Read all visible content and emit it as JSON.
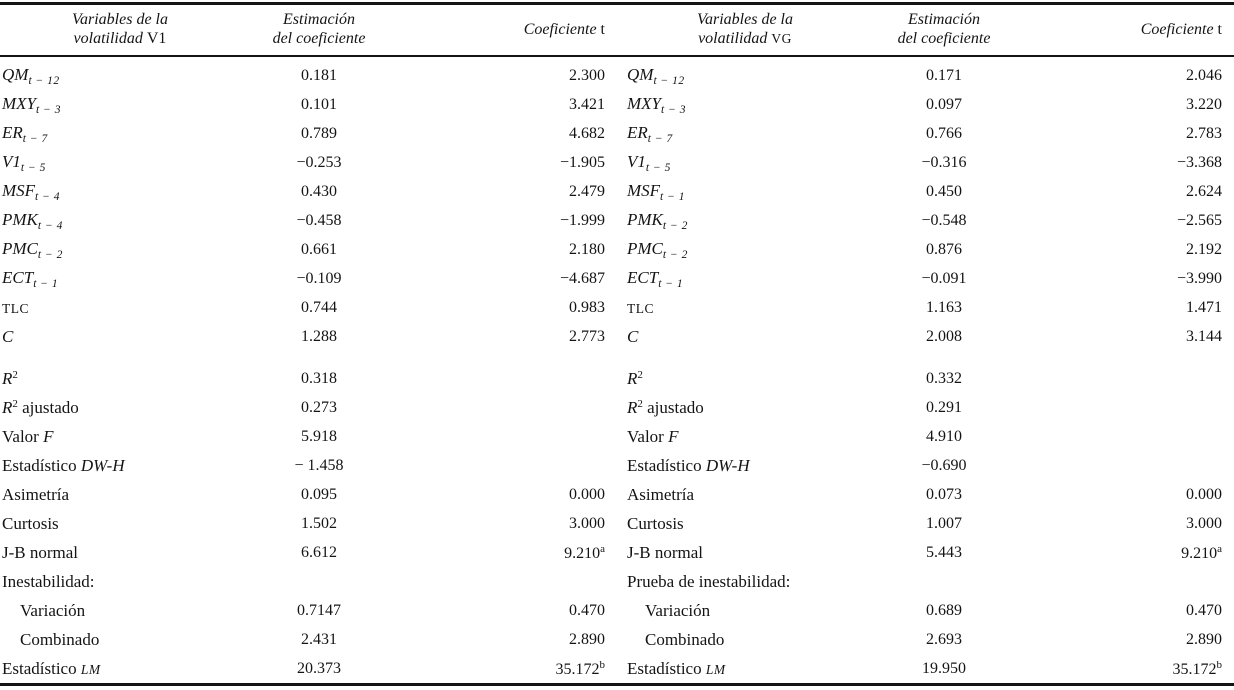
{
  "meta": {
    "background": "#ffffff",
    "text_color": "#141414",
    "rule_color": "#141414"
  },
  "panels": [
    {
      "id": "v1",
      "header": {
        "variables_line1": [
          {
            "t": "Variables de la",
            "s": "i"
          }
        ],
        "variables_line2": [
          {
            "t": "volatilidad ",
            "s": "i"
          },
          {
            "t": "V1",
            "s": "r"
          }
        ],
        "estimate_line1": "Estimación",
        "estimate_line2": "del coeficiente",
        "tstat": [
          {
            "t": "Coeficiente ",
            "s": "i"
          },
          {
            "t": "t",
            "s": "r"
          }
        ]
      },
      "rows": [
        {
          "label": [
            {
              "t": "QM",
              "s": "i"
            },
            {
              "t": "t − 12",
              "s": "sub"
            }
          ],
          "est": "0.181",
          "t": "2.300"
        },
        {
          "label": [
            {
              "t": "MXY",
              "s": "i"
            },
            {
              "t": "t − 3",
              "s": "sub"
            }
          ],
          "est": "0.101",
          "t": "3.421"
        },
        {
          "label": [
            {
              "t": "ER",
              "s": "i"
            },
            {
              "t": "t − 7",
              "s": "sub"
            }
          ],
          "est": "0.789",
          "t": "4.682"
        },
        {
          "label": [
            {
              "t": "V1",
              "s": "i"
            },
            {
              "t": "t − 5",
              "s": "sub"
            }
          ],
          "est": "−0.253",
          "t": "−1.905"
        },
        {
          "label": [
            {
              "t": "MSF",
              "s": "i"
            },
            {
              "t": "t − 4",
              "s": "sub"
            }
          ],
          "est": "0.430",
          "t": "2.479"
        },
        {
          "label": [
            {
              "t": "PMK",
              "s": "i"
            },
            {
              "t": "t − 4",
              "s": "sub"
            }
          ],
          "est": "−0.458",
          "t": "−1.999"
        },
        {
          "label": [
            {
              "t": "PMC",
              "s": "i"
            },
            {
              "t": "t − 2",
              "s": "sub"
            }
          ],
          "est": "0.661",
          "t": "2.180"
        },
        {
          "label": [
            {
              "t": "ECT",
              "s": "i"
            },
            {
              "t": "t − 1",
              "s": "sub"
            }
          ],
          "est": "−0.109",
          "t": "−4.687"
        },
        {
          "label": [
            {
              "t": "TLC",
              "s": "sc"
            }
          ],
          "est": "0.744",
          "t": "0.983"
        },
        {
          "label": [
            {
              "t": "C",
              "s": "i"
            }
          ],
          "est": "1.288",
          "t": "2.773"
        },
        {
          "gap": true,
          "label": [
            {
              "t": "R",
              "s": "i"
            },
            {
              "t": "2",
              "s": "sup"
            }
          ],
          "est": "0.318",
          "t": ""
        },
        {
          "label": [
            {
              "t": "R",
              "s": "i"
            },
            {
              "t": "2",
              "s": "sup"
            },
            {
              "t": " ajustado",
              "s": "r"
            }
          ],
          "est": "0.273",
          "t": ""
        },
        {
          "label": [
            {
              "t": "Valor ",
              "s": "r"
            },
            {
              "t": "F",
              "s": "i"
            }
          ],
          "est": "5.918",
          "t": ""
        },
        {
          "label": [
            {
              "t": "Estadístico ",
              "s": "r"
            },
            {
              "t": "DW-H",
              "s": "i"
            }
          ],
          "est": "− 1.458",
          "t": ""
        },
        {
          "label": [
            {
              "t": "Asimetría",
              "s": "r"
            }
          ],
          "est": "0.095",
          "t": "0.000"
        },
        {
          "label": [
            {
              "t": "Curtosis",
              "s": "r"
            }
          ],
          "est": "1.502",
          "t": "3.000"
        },
        {
          "label": [
            {
              "t": "J-B normal",
              "s": "r"
            }
          ],
          "est": "6.612",
          "t": "9.210^a"
        },
        {
          "label": [
            {
              "t": "Inestabilidad:",
              "s": "r"
            }
          ],
          "est": "",
          "t": ""
        },
        {
          "indent": true,
          "label": [
            {
              "t": "Variación",
              "s": "r"
            }
          ],
          "est": "0.7147",
          "t": "0.470"
        },
        {
          "indent": true,
          "label": [
            {
              "t": "Combinado",
              "s": "r"
            }
          ],
          "est": "2.431",
          "t": "2.890"
        },
        {
          "label": [
            {
              "t": "Estadístico ",
              "s": "r"
            },
            {
              "t": "LM",
              "s": "isc"
            }
          ],
          "est": "20.373",
          "t": "35.172^b"
        }
      ]
    },
    {
      "id": "vg",
      "header": {
        "variables_line1": [
          {
            "t": "Variables de la",
            "s": "i"
          }
        ],
        "variables_line2": [
          {
            "t": "volatilidad ",
            "s": "i"
          },
          {
            "t": "VG",
            "s": "sc"
          }
        ],
        "estimate_line1": "Estimación",
        "estimate_line2": "del coeficiente",
        "tstat": [
          {
            "t": "Coeficiente ",
            "s": "i"
          },
          {
            "t": "t",
            "s": "r"
          }
        ]
      },
      "rows": [
        {
          "label": [
            {
              "t": "QM",
              "s": "i"
            },
            {
              "t": "t − 12",
              "s": "sub"
            }
          ],
          "est": "0.171",
          "t": "2.046"
        },
        {
          "label": [
            {
              "t": "MXY",
              "s": "i"
            },
            {
              "t": "t − 3",
              "s": "sub"
            }
          ],
          "est": "0.097",
          "t": "3.220"
        },
        {
          "label": [
            {
              "t": "ER",
              "s": "i"
            },
            {
              "t": "t − 7",
              "s": "sub"
            }
          ],
          "est": "0.766",
          "t": "2.783"
        },
        {
          "label": [
            {
              "t": "V1",
              "s": "i"
            },
            {
              "t": "t − 5",
              "s": "sub"
            }
          ],
          "est": "−0.316",
          "t": "−3.368"
        },
        {
          "label": [
            {
              "t": "MSF",
              "s": "i"
            },
            {
              "t": "t − 1",
              "s": "sub"
            }
          ],
          "est": "0.450",
          "t": "2.624"
        },
        {
          "label": [
            {
              "t": "PMK",
              "s": "i"
            },
            {
              "t": "t − 2",
              "s": "sub"
            }
          ],
          "est": "−0.548",
          "t": "−2.565"
        },
        {
          "label": [
            {
              "t": "PMC",
              "s": "i"
            },
            {
              "t": "t − 2",
              "s": "sub"
            }
          ],
          "est": "0.876",
          "t": "2.192"
        },
        {
          "label": [
            {
              "t": "ECT",
              "s": "i"
            },
            {
              "t": "t − 1",
              "s": "sub"
            }
          ],
          "est": "−0.091",
          "t": "−3.990"
        },
        {
          "label": [
            {
              "t": "TLC",
              "s": "sc"
            }
          ],
          "est": "1.163",
          "t": "1.471"
        },
        {
          "label": [
            {
              "t": "C",
              "s": "i"
            }
          ],
          "est": "2.008",
          "t": "3.144"
        },
        {
          "gap": true,
          "label": [
            {
              "t": "R",
              "s": "i"
            },
            {
              "t": "2",
              "s": "sup"
            }
          ],
          "est": "0.332",
          "t": ""
        },
        {
          "label": [
            {
              "t": "R",
              "s": "i"
            },
            {
              "t": "2",
              "s": "sup"
            },
            {
              "t": " ajustado",
              "s": "r"
            }
          ],
          "est": "0.291",
          "t": ""
        },
        {
          "label": [
            {
              "t": "Valor ",
              "s": "r"
            },
            {
              "t": "F",
              "s": "i"
            }
          ],
          "est": "4.910",
          "t": ""
        },
        {
          "label": [
            {
              "t": "Estadístico ",
              "s": "r"
            },
            {
              "t": "DW-H",
              "s": "i"
            }
          ],
          "est": "−0.690",
          "t": ""
        },
        {
          "label": [
            {
              "t": "Asimetría",
              "s": "r"
            }
          ],
          "est": "0.073",
          "t": "0.000"
        },
        {
          "label": [
            {
              "t": "Curtosis",
              "s": "r"
            }
          ],
          "est": "1.007",
          "t": "3.000"
        },
        {
          "label": [
            {
              "t": "J-B normal",
              "s": "r"
            }
          ],
          "est": "5.443",
          "t": "9.210^a"
        },
        {
          "label": [
            {
              "t": "Prueba de inestabilidad:",
              "s": "r"
            }
          ],
          "est": "",
          "t": ""
        },
        {
          "indent": true,
          "label": [
            {
              "t": "Variación",
              "s": "r"
            }
          ],
          "est": "0.689",
          "t": "0.470"
        },
        {
          "indent": true,
          "label": [
            {
              "t": "Combinado",
              "s": "r"
            }
          ],
          "est": "2.693",
          "t": "2.890"
        },
        {
          "label": [
            {
              "t": "Estadístico ",
              "s": "r"
            },
            {
              "t": "LM",
              "s": "isc"
            }
          ],
          "est": "19.950",
          "t": "35.172^b"
        }
      ]
    }
  ]
}
